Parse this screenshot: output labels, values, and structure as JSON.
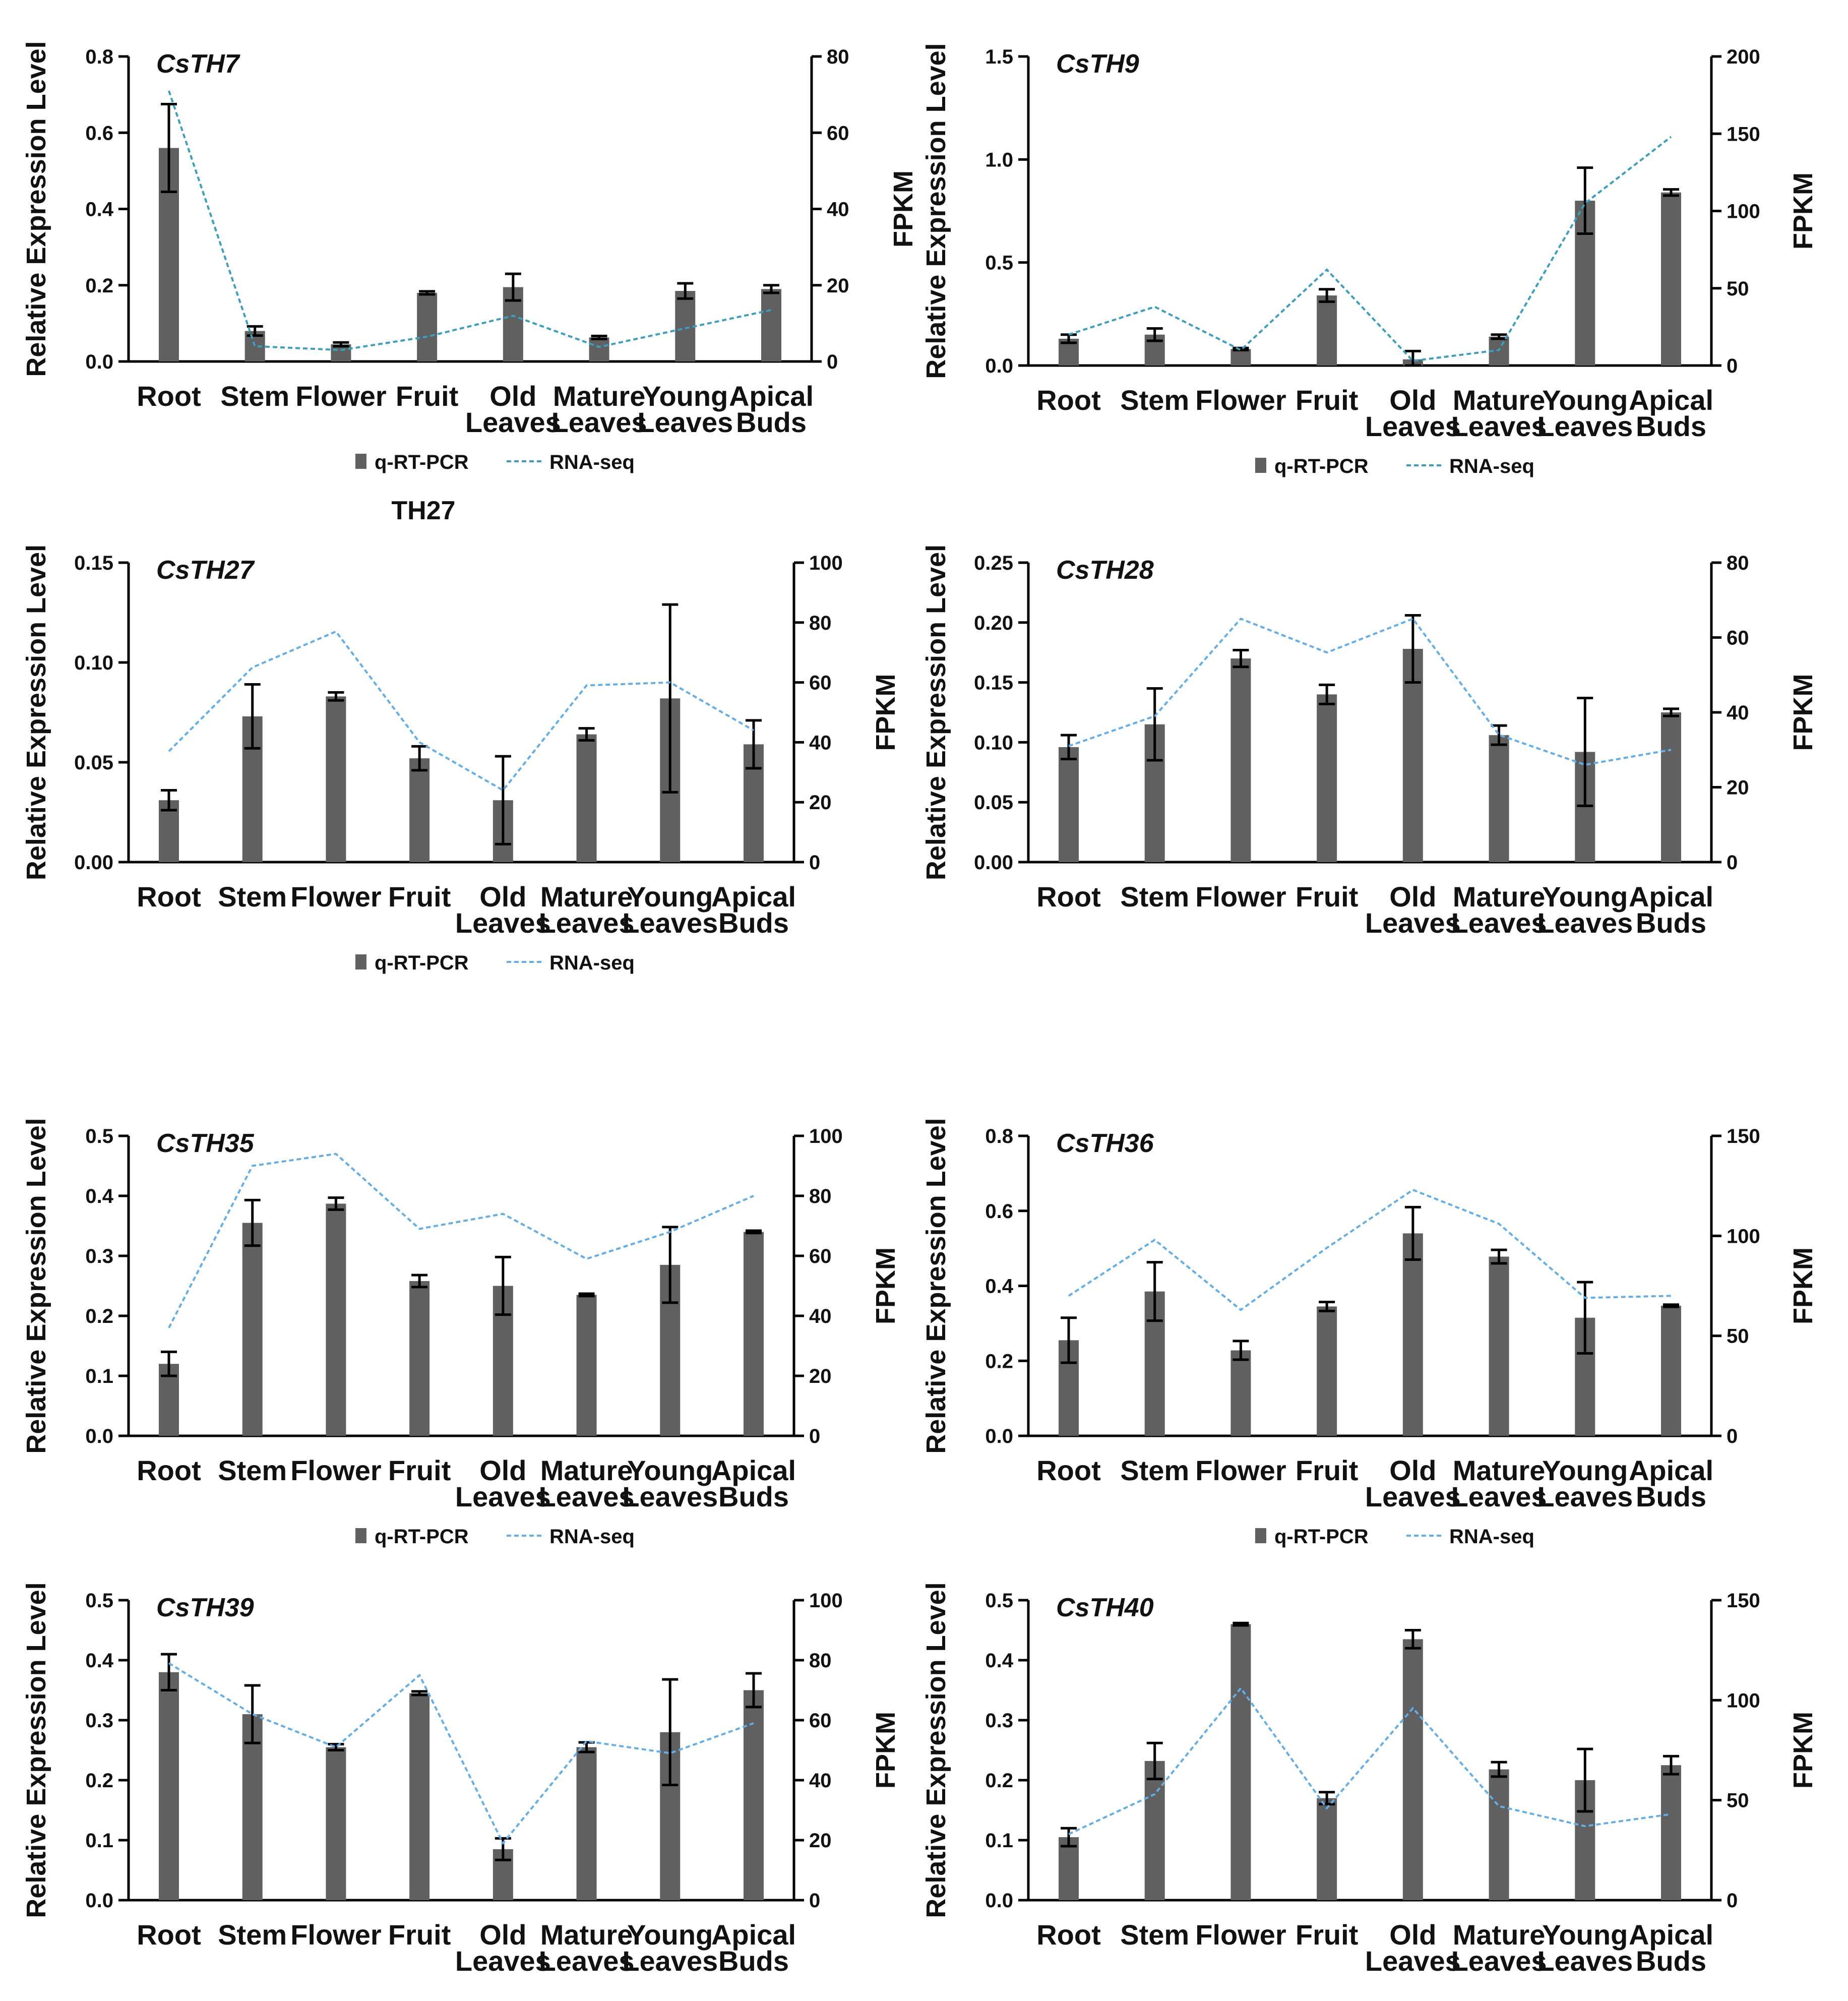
{
  "figure_note": "TH27",
  "legend": {
    "bar_label": "q-RT-PCR",
    "line_label": "RNA-seq"
  },
  "colors": {
    "bar": "#606060",
    "line_dark": "#3a9fbf",
    "line_light": "#62aee8",
    "axis": "#000000"
  },
  "chart_data": [
    {
      "type": "bar",
      "title": "CsTH7",
      "categories": [
        "Root",
        "Stem",
        "Flower",
        "Fruit",
        "Old\nLeaves",
        "Mature\nLeaves",
        "Young\nLeaves",
        "Apical\nBuds"
      ],
      "ylabel": "Relative Expression Level",
      "y2label": "FPKM",
      "ylim": [
        0,
        0.8
      ],
      "yticks": [
        "0.0",
        "0.2",
        "0.4",
        "0.6",
        "0.8"
      ],
      "y2lim": [
        0,
        80
      ],
      "y2ticks": [
        "0",
        "20",
        "40",
        "60",
        "80"
      ],
      "series": [
        {
          "name": "q-RT-PCR",
          "axis": "left",
          "values": [
            0.56,
            0.08,
            0.045,
            0.18,
            0.195,
            0.063,
            0.185,
            0.19
          ],
          "errors": [
            0.115,
            0.012,
            0.005,
            0.004,
            0.035,
            0.004,
            0.02,
            0.01
          ]
        },
        {
          "name": "RNA-seq",
          "axis": "right",
          "line": "dark",
          "values": [
            71,
            4,
            3,
            6.5,
            12,
            3.8,
            8.7,
            13.5
          ]
        }
      ],
      "show_legend": true
    },
    {
      "type": "bar",
      "title": "CsTH9",
      "categories": [
        "Root",
        "Stem",
        "Flower",
        "Fruit",
        "Old\nLeaves",
        "Mature\nLeaves",
        "Young\nLeaves",
        "Apical\nBuds"
      ],
      "ylabel": "Relative Expression Level",
      "y2label": "FPKM",
      "ylim": [
        0,
        1.5
      ],
      "yticks": [
        "0.0",
        "0.5",
        "1.0",
        "1.5"
      ],
      "y2lim": [
        0,
        200
      ],
      "y2ticks": [
        "0",
        "50",
        "100",
        "150",
        "200"
      ],
      "series": [
        {
          "name": "q-RT-PCR",
          "axis": "left",
          "values": [
            0.13,
            0.15,
            0.08,
            0.34,
            0.03,
            0.14,
            0.8,
            0.84
          ],
          "errors": [
            0.02,
            0.03,
            0.005,
            0.03,
            0.04,
            0.01,
            0.16,
            0.015
          ]
        },
        {
          "name": "RNA-seq",
          "axis": "right",
          "line": "dark",
          "values": [
            20,
            38,
            10,
            62,
            3,
            10,
            105,
            148
          ]
        }
      ],
      "show_legend": true
    },
    {
      "type": "bar",
      "title": "CsTH27",
      "categories": [
        "Root",
        "Stem",
        "Flower",
        "Fruit",
        "Old\nLeaves",
        "Mature\nLeaves",
        "Young\nLeaves",
        "Apical\nBuds"
      ],
      "ylabel": "Relative Expression Level",
      "y2label": "FPKM",
      "ylim": [
        0,
        0.15
      ],
      "yticks": [
        "0.00",
        "0.05",
        "0.10",
        "0.15"
      ],
      "y2lim": [
        0,
        100
      ],
      "y2ticks": [
        "0",
        "20",
        "40",
        "60",
        "80",
        "100"
      ],
      "series": [
        {
          "name": "q-RT-PCR",
          "axis": "left",
          "values": [
            0.031,
            0.073,
            0.083,
            0.052,
            0.031,
            0.064,
            0.082,
            0.059
          ],
          "errors": [
            0.005,
            0.016,
            0.002,
            0.006,
            0.022,
            0.003,
            0.047,
            0.012
          ]
        },
        {
          "name": "RNA-seq",
          "axis": "right",
          "line": "light",
          "values": [
            37,
            65,
            77,
            40,
            24,
            59,
            60,
            44
          ]
        }
      ],
      "show_legend": true
    },
    {
      "type": "bar",
      "title": "CsTH28",
      "categories": [
        "Root",
        "Stem",
        "Flower",
        "Fruit",
        "Old\nLeaves",
        "Mature\nLeaves",
        "Young\nLeaves",
        "Apical\nBuds"
      ],
      "ylabel": "Relative Expression Level",
      "y2label": "FPKM",
      "ylim": [
        0,
        0.25
      ],
      "yticks": [
        "0.00",
        "0.05",
        "0.10",
        "0.15",
        "0.20",
        "0.25"
      ],
      "y2lim": [
        0,
        80
      ],
      "y2ticks": [
        "0",
        "20",
        "40",
        "60",
        "80"
      ],
      "series": [
        {
          "name": "q-RT-PCR",
          "axis": "left",
          "values": [
            0.096,
            0.115,
            0.17,
            0.14,
            0.178,
            0.106,
            0.092,
            0.125
          ],
          "errors": [
            0.01,
            0.03,
            0.007,
            0.008,
            0.028,
            0.008,
            0.045,
            0.003
          ]
        },
        {
          "name": "RNA-seq",
          "axis": "right",
          "line": "light",
          "values": [
            31,
            39,
            65,
            56,
            65,
            34,
            26,
            30
          ]
        }
      ],
      "show_legend": false
    },
    {
      "type": "bar",
      "title": "CsTH35",
      "categories": [
        "Root",
        "Stem",
        "Flower",
        "Fruit",
        "Old\nLeaves",
        "Mature\nLeaves",
        "Young\nLeaves",
        "Apical\nBuds"
      ],
      "ylabel": "Relative Expression Level",
      "y2label": "FPKM",
      "ylim": [
        0,
        0.5
      ],
      "yticks": [
        "0.0",
        "0.1",
        "0.2",
        "0.3",
        "0.4",
        "0.5"
      ],
      "y2lim": [
        0,
        100
      ],
      "y2ticks": [
        "0",
        "20",
        "40",
        "60",
        "80",
        "100"
      ],
      "series": [
        {
          "name": "q-RT-PCR",
          "axis": "left",
          "values": [
            0.12,
            0.355,
            0.387,
            0.258,
            0.25,
            0.235,
            0.285,
            0.34
          ],
          "errors": [
            0.02,
            0.038,
            0.01,
            0.01,
            0.048,
            0.002,
            0.063,
            0.002
          ]
        },
        {
          "name": "RNA-seq",
          "axis": "right",
          "line": "light",
          "values": [
            36,
            90,
            94,
            69,
            74,
            59,
            68,
            80
          ]
        }
      ],
      "show_legend": true
    },
    {
      "type": "bar",
      "title": "CsTH36",
      "categories": [
        "Root",
        "Stem",
        "Flower",
        "Fruit",
        "Old\nLeaves",
        "Mature\nLeaves",
        "Young\nLeaves",
        "Apical\nBuds"
      ],
      "ylabel": "Relative Expression Level",
      "y2label": "FPKM",
      "ylim": [
        0,
        0.8
      ],
      "yticks": [
        "0.0",
        "0.2",
        "0.4",
        "0.6",
        "0.8"
      ],
      "y2lim": [
        0,
        150
      ],
      "y2ticks": [
        "0",
        "50",
        "100",
        "150"
      ],
      "series": [
        {
          "name": "q-RT-PCR",
          "axis": "left",
          "values": [
            0.255,
            0.385,
            0.228,
            0.345,
            0.54,
            0.478,
            0.315,
            0.347
          ],
          "errors": [
            0.06,
            0.078,
            0.025,
            0.012,
            0.07,
            0.018,
            0.095,
            0.003
          ]
        },
        {
          "name": "RNA-seq",
          "axis": "right",
          "line": "light",
          "values": [
            70,
            98,
            63,
            94,
            123,
            106,
            69,
            70
          ]
        }
      ],
      "show_legend": true
    },
    {
      "type": "bar",
      "title": "CsTH39",
      "categories": [
        "Root",
        "Stem",
        "Flower",
        "Fruit",
        "Old\nLeaves",
        "Mature\nLeaves",
        "Young\nLeaves",
        "Apical\nBuds"
      ],
      "ylabel": "Relative Expression Level",
      "y2label": "FPKM",
      "ylim": [
        0,
        0.5
      ],
      "yticks": [
        "0.0",
        "0.1",
        "0.2",
        "0.3",
        "0.4",
        "0.5"
      ],
      "y2lim": [
        0,
        100
      ],
      "y2ticks": [
        "0",
        "20",
        "40",
        "60",
        "80",
        "100"
      ],
      "series": [
        {
          "name": "q-RT-PCR",
          "axis": "left",
          "values": [
            0.38,
            0.31,
            0.255,
            0.345,
            0.085,
            0.255,
            0.28,
            0.35
          ],
          "errors": [
            0.03,
            0.048,
            0.005,
            0.003,
            0.018,
            0.008,
            0.088,
            0.028
          ]
        },
        {
          "name": "RNA-seq",
          "axis": "right",
          "line": "light",
          "values": [
            79,
            62,
            51,
            75,
            19,
            53,
            49,
            59
          ]
        }
      ],
      "show_legend": false
    },
    {
      "type": "bar",
      "title": "CsTH40",
      "categories": [
        "Root",
        "Stem",
        "Flower",
        "Fruit",
        "Old\nLeaves",
        "Mature\nLeaves",
        "Young\nLeaves",
        "Apical\nBuds"
      ],
      "ylabel": "Relative Expression Level",
      "y2label": "FPKM",
      "ylim": [
        0,
        0.5
      ],
      "yticks": [
        "0.0",
        "0.1",
        "0.2",
        "0.3",
        "0.4",
        "0.5"
      ],
      "y2lim": [
        0,
        150
      ],
      "y2ticks": [
        "0",
        "50",
        "100",
        "150"
      ],
      "series": [
        {
          "name": "q-RT-PCR",
          "axis": "left",
          "values": [
            0.105,
            0.232,
            0.46,
            0.17,
            0.435,
            0.218,
            0.2,
            0.225
          ],
          "errors": [
            0.015,
            0.03,
            0.002,
            0.01,
            0.015,
            0.012,
            0.052,
            0.015
          ]
        },
        {
          "name": "RNA-seq",
          "axis": "right",
          "line": "light",
          "values": [
            33,
            53,
            106,
            46,
            96,
            47,
            37,
            43
          ]
        }
      ],
      "show_legend": false
    }
  ]
}
